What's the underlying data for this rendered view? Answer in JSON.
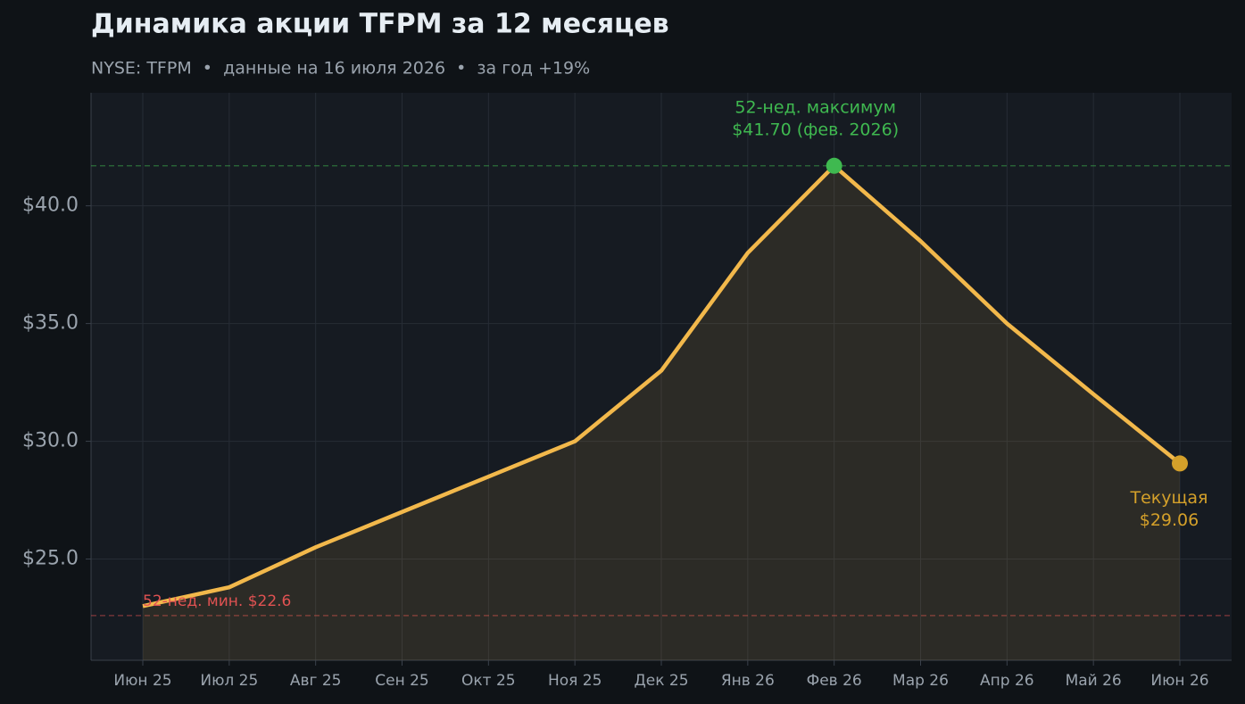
{
  "chart_data": {
    "type": "line",
    "title": "Динамика акции TFPM за 12 месяцев",
    "subtitle": "NYSE: TFPM  •  данные на 16 июля 2026  •  за год +19%",
    "categories": [
      "Июн 25",
      "Июл 25",
      "Авг 25",
      "Сен 25",
      "Окт 25",
      "Ноя 25",
      "Дек 25",
      "Янв 26",
      "Фев 26",
      "Мар 26",
      "Апр 26",
      "Май 26",
      "Июн 26"
    ],
    "series": [
      {
        "name": "TFPM",
        "color": "#f2b84b",
        "values": [
          23.0,
          23.8,
          25.5,
          27.0,
          28.5,
          30.0,
          33.0,
          38.0,
          41.7,
          38.5,
          35.0,
          32.0,
          29.06
        ]
      }
    ],
    "ylim": [
      20.7,
      44.8
    ],
    "yticks": [
      {
        "value": 25,
        "label": "$25.0"
      },
      {
        "value": 30,
        "label": "$30.0"
      },
      {
        "value": 35,
        "label": "$35.0"
      },
      {
        "value": 40,
        "label": "$40.0"
      }
    ],
    "grid": true,
    "reference_lines": [
      {
        "value": 41.7,
        "color": "#3fb950"
      },
      {
        "value": 22.6,
        "color": "#e05252"
      }
    ],
    "annotations": {
      "max": [
        "52-нед. максимум",
        "$41.70 (фев. 2026)"
      ],
      "current": [
        "Текущая",
        "$29.06"
      ],
      "min": "52-нед. мин. $22.6"
    },
    "max_color": "#3fb950",
    "current_color": "#d4a02a",
    "min_color": "#e05252"
  }
}
